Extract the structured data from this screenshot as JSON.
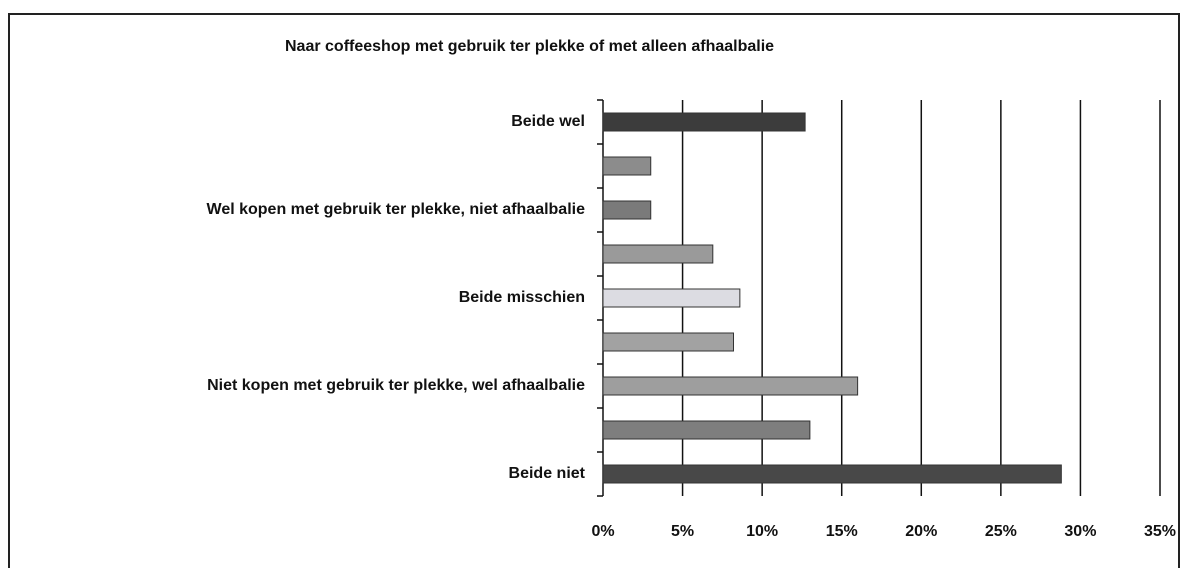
{
  "chart_data": {
    "type": "barh",
    "title": "Naar coffeeshop met gebruik ter plekke of met alleen afhaalbalie",
    "categories": [
      "Beide wel",
      null,
      "Wel kopen met gebruik ter plekke, niet afhaalbalie",
      null,
      "Beide misschien",
      null,
      "Niet kopen met gebruik ter plekke, wel afhaalbalie",
      null,
      "Beide niet"
    ],
    "values": [
      12.7,
      3.0,
      3.0,
      6.9,
      8.6,
      8.2,
      16.0,
      13.0,
      28.8
    ],
    "colors": [
      "#3c3c3c",
      "#8c8c8c",
      "#7a7a7a",
      "#9a9a9a",
      "#dcdce2",
      "#a2a2a2",
      "#9e9e9e",
      "#7e7e7e",
      "#484848"
    ],
    "xlim": [
      0,
      35
    ],
    "xticks": [
      {
        "value": 0,
        "label": "0%"
      },
      {
        "value": 5,
        "label": "5%"
      },
      {
        "value": 10,
        "label": "10%"
      },
      {
        "value": 15,
        "label": "15%"
      },
      {
        "value": 20,
        "label": "20%"
      },
      {
        "value": 25,
        "label": "25%"
      },
      {
        "value": 30,
        "label": "30%"
      },
      {
        "value": 35,
        "label": "35%"
      }
    ],
    "grid": true
  }
}
